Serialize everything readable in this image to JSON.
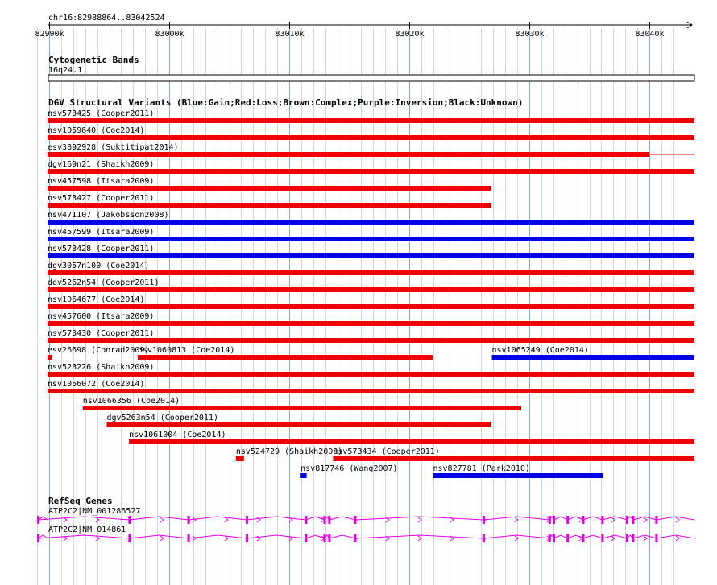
{
  "location": "chr16:82988864..83042524",
  "ruler_range": [
    82988864,
    83042524
  ],
  "ruler_ticks": [
    {
      "pos": 82990000,
      "label": "82990k"
    },
    {
      "pos": 83000000,
      "label": "83000k"
    },
    {
      "pos": 83010000,
      "label": "83010k"
    },
    {
      "pos": 83020000,
      "label": "83020k"
    },
    {
      "pos": 83030000,
      "label": "83030k"
    },
    {
      "pos": 83040000,
      "label": "83040k"
    }
  ],
  "colors": {
    "gain": "#0000e6",
    "loss": "#ee0000",
    "gene": "#e600e6",
    "grid_major": "#88a8c8",
    "grid_minor": "#c4d8e8",
    "ideogram": "#000000"
  },
  "tracks": {
    "cytoband": {
      "title": "Cytogenetic Bands",
      "band": "16q24.1"
    },
    "dgv": {
      "title": "DGV Structural Variants (Blue:Gain;Red:Loss;Brown:Complex;Purple:Inversion;Black:Unknown)",
      "rows": [
        [
          {
            "label": "nsv573425 (Cooper2011)",
            "type": "loss",
            "start": 82988864,
            "end": 83042524
          }
        ],
        [
          {
            "label": "nsv1059640 (Coe2014)",
            "type": "loss",
            "start": 82988864,
            "end": 83042524
          }
        ],
        [
          {
            "label": "esv3892928 (Suktitipat2014)",
            "type": "loss",
            "start": 82988864,
            "end": 83040000,
            "thin_to": 83042524
          }
        ],
        [
          {
            "label": "dgv169n21 (Shaikh2009)",
            "type": "loss",
            "start": 82988864,
            "end": 83042524
          }
        ],
        [
          {
            "label": "nsv457598 (Itsara2009)",
            "type": "loss",
            "start": 82988864,
            "end": 83026820
          }
        ],
        [
          {
            "label": "nsv573427 (Cooper2011)",
            "type": "loss",
            "start": 82988864,
            "end": 83026820
          }
        ],
        [
          {
            "label": "nsv471107 (Jakobsson2008)",
            "type": "gain",
            "start": 82988864,
            "end": 83042524
          }
        ],
        [
          {
            "label": "nsv457599 (Itsara2009)",
            "type": "gain",
            "start": 82988864,
            "end": 83042524
          }
        ],
        [
          {
            "label": "nsv573428 (Cooper2011)",
            "type": "gain",
            "start": 82988864,
            "end": 83042524
          }
        ],
        [
          {
            "label": "dgv3057n100 (Coe2014)",
            "type": "loss",
            "start": 82988864,
            "end": 83042524
          }
        ],
        [
          {
            "label": "dgv5262n54 (Cooper2011)",
            "type": "loss",
            "start": 82988864,
            "end": 83042524
          }
        ],
        [
          {
            "label": "nsv1064677 (Coe2014)",
            "type": "loss",
            "start": 82988864,
            "end": 83042524
          }
        ],
        [
          {
            "label": "nsv457600 (Itsara2009)",
            "type": "loss",
            "start": 82988864,
            "end": 83042524
          }
        ],
        [
          {
            "label": "nsv573430 (Cooper2011)",
            "type": "loss",
            "start": 82988864,
            "end": 83042524
          }
        ],
        [
          {
            "label": "esv26698 (Conrad2009)",
            "type": "loss",
            "start": 82988864,
            "end": 82989300
          },
          {
            "label": "nsv1060813 (Coe2014)",
            "type": "loss",
            "start": 82997380,
            "end": 83021940
          },
          {
            "label": "nsv1065249 (Coe2014)",
            "type": "gain",
            "start": 83026880,
            "end": 83042524
          }
        ],
        [
          {
            "label": "nsv523226 (Shaikh2009)",
            "type": "loss",
            "start": 82988864,
            "end": 83042524
          }
        ],
        [
          {
            "label": "nsv1056072 (Coe2014)",
            "type": "loss",
            "start": 82988864,
            "end": 83042524
          }
        ],
        [
          {
            "label": "nsv1066356 (Coe2014)",
            "type": "loss",
            "start": 82992800,
            "end": 83029330
          }
        ],
        [
          {
            "label": "dgv5263n54 (Cooper2011)",
            "type": "loss",
            "start": 82994800,
            "end": 83026820
          }
        ],
        [
          {
            "label": "nsv1061004 (Coe2014)",
            "type": "loss",
            "start": 82996650,
            "end": 83042524
          }
        ],
        [
          {
            "label": "nsv524729 (Shaikh2009)",
            "type": "loss",
            "start": 83005560,
            "end": 83006230
          },
          {
            "label": "nsv573434 (Cooper2011)",
            "type": "loss",
            "start": 83013650,
            "end": 83042524
          }
        ],
        [
          {
            "label": "nsv817746 (Wang2007)",
            "type": "gain",
            "start": 83010950,
            "end": 83011450
          },
          {
            "label": "nsv827781 (Park2010)",
            "type": "gain",
            "start": 83021980,
            "end": 83036120
          }
        ]
      ]
    },
    "refseq": {
      "title": "RefSeq Genes",
      "exons": [
        82989100,
        82996710,
        83001620,
        83006480,
        83011400,
        83012950,
        83013350,
        83015500,
        83026200,
        83031700,
        83032050,
        83033200,
        83034500,
        83036100,
        83038150,
        83038650,
        83040600
      ],
      "genes": [
        {
          "label": "ATP2C2|NM_001286527",
          "start": 82988864,
          "end": 83042524
        },
        {
          "label": "ATP2C2|NM_014861",
          "start": 82988864,
          "end": 83042524
        }
      ]
    }
  }
}
